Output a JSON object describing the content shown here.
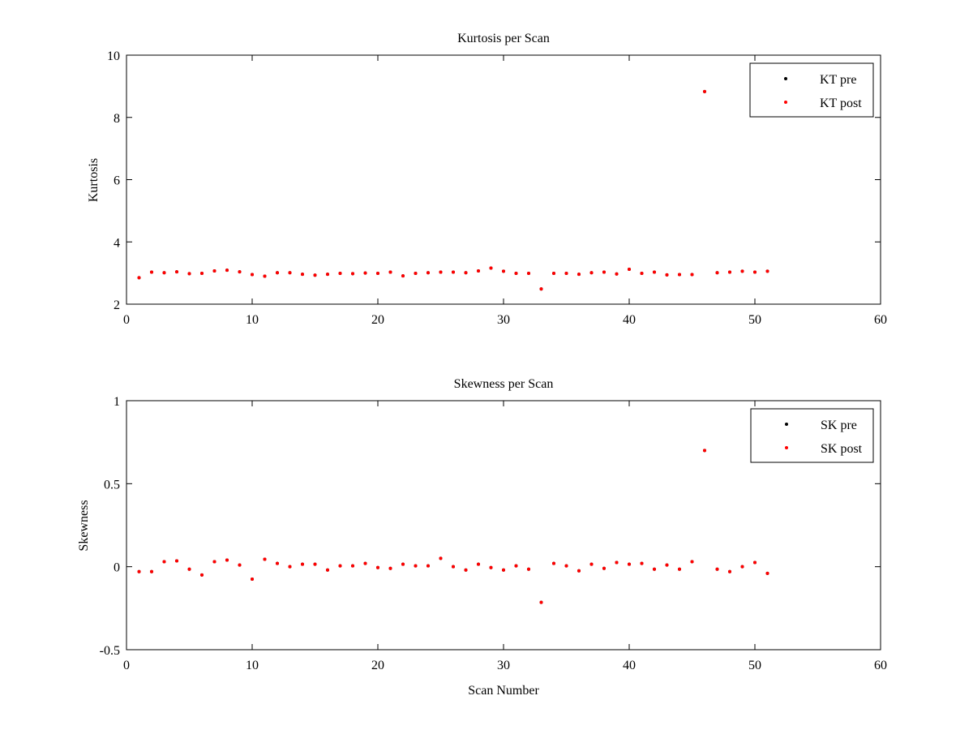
{
  "chart_data": [
    {
      "type": "scatter",
      "title": "Kurtosis per Scan",
      "xlabel": "",
      "ylabel": "Kurtosis",
      "xlim": [
        0,
        60
      ],
      "ylim": [
        2,
        10
      ],
      "xticks": [
        0,
        10,
        20,
        30,
        40,
        50,
        60
      ],
      "yticks": [
        2,
        4,
        6,
        8,
        10
      ],
      "xtick_labels": [
        "0",
        "10",
        "20",
        "30",
        "40",
        "50",
        "60"
      ],
      "ytick_labels": [
        "2",
        "4",
        "6",
        "8",
        "10"
      ],
      "grid": false,
      "legend_position": "top-right",
      "series": [
        {
          "name": "KT pre",
          "color": "#000000",
          "x": [
            1,
            2,
            3,
            4,
            5,
            6,
            7,
            8,
            9,
            10,
            11,
            12,
            13,
            14,
            15,
            16,
            17,
            18,
            19,
            20,
            21,
            22,
            23,
            24,
            25,
            26,
            27,
            28,
            29,
            30,
            31,
            32,
            33,
            34,
            35,
            36,
            37,
            38,
            39,
            40,
            41,
            42,
            43,
            44,
            45,
            46,
            47,
            48,
            49,
            50,
            51
          ],
          "y": [
            2.85,
            3.03,
            3.01,
            3.04,
            2.98,
            2.99,
            3.07,
            3.09,
            3.04,
            2.95,
            2.9,
            3.01,
            3.01,
            2.96,
            2.93,
            2.96,
            2.99,
            2.98,
            3.0,
            2.99,
            3.03,
            2.91,
            2.99,
            3.01,
            3.03,
            3.03,
            3.01,
            3.07,
            3.16,
            3.06,
            2.99,
            2.99,
            2.49,
            2.99,
            2.99,
            2.96,
            3.01,
            3.03,
            2.97,
            3.12,
            2.99,
            3.03,
            2.94,
            2.95,
            2.95,
            8.83,
            3.01,
            3.03,
            3.06,
            3.03,
            3.06
          ]
        },
        {
          "name": "KT post",
          "color": "#ff0000",
          "x": [
            1,
            2,
            3,
            4,
            5,
            6,
            7,
            8,
            9,
            10,
            11,
            12,
            13,
            14,
            15,
            16,
            17,
            18,
            19,
            20,
            21,
            22,
            23,
            24,
            25,
            26,
            27,
            28,
            29,
            30,
            31,
            32,
            33,
            34,
            35,
            36,
            37,
            38,
            39,
            40,
            41,
            42,
            43,
            44,
            45,
            46,
            47,
            48,
            49,
            50,
            51
          ],
          "y": [
            2.85,
            3.03,
            3.01,
            3.04,
            2.98,
            2.99,
            3.07,
            3.09,
            3.04,
            2.95,
            2.9,
            3.01,
            3.01,
            2.96,
            2.93,
            2.96,
            2.99,
            2.98,
            3.0,
            2.99,
            3.03,
            2.91,
            2.99,
            3.01,
            3.03,
            3.03,
            3.01,
            3.07,
            3.16,
            3.06,
            2.99,
            2.99,
            2.49,
            2.99,
            2.99,
            2.96,
            3.01,
            3.03,
            2.97,
            3.12,
            2.99,
            3.03,
            2.94,
            2.95,
            2.95,
            8.83,
            3.01,
            3.03,
            3.06,
            3.03,
            3.06
          ]
        }
      ]
    },
    {
      "type": "scatter",
      "title": "Skewness per Scan",
      "xlabel": "Scan Number",
      "ylabel": "Skewness",
      "xlim": [
        0,
        60
      ],
      "ylim": [
        -0.5,
        1
      ],
      "xticks": [
        0,
        10,
        20,
        30,
        40,
        50,
        60
      ],
      "yticks": [
        -0.5,
        0,
        0.5,
        1
      ],
      "xtick_labels": [
        "0",
        "10",
        "20",
        "30",
        "40",
        "50",
        "60"
      ],
      "ytick_labels": [
        "-0.5",
        "0",
        "0.5",
        "1"
      ],
      "grid": false,
      "legend_position": "top-right",
      "series": [
        {
          "name": "SK pre",
          "color": "#000000",
          "x": [
            1,
            2,
            3,
            4,
            5,
            6,
            7,
            8,
            9,
            10,
            11,
            12,
            13,
            14,
            15,
            16,
            17,
            18,
            19,
            20,
            21,
            22,
            23,
            24,
            25,
            26,
            27,
            28,
            29,
            30,
            31,
            32,
            33,
            34,
            35,
            36,
            37,
            38,
            39,
            40,
            41,
            42,
            43,
            44,
            45,
            46,
            47,
            48,
            49,
            50,
            51
          ],
          "y": [
            -0.03,
            -0.03,
            0.03,
            0.035,
            -0.015,
            -0.05,
            0.03,
            0.04,
            0.01,
            -0.075,
            0.045,
            0.02,
            0.0,
            0.015,
            0.015,
            -0.02,
            0.005,
            0.005,
            0.02,
            -0.005,
            -0.01,
            0.015,
            0.005,
            0.005,
            0.05,
            0.0,
            -0.02,
            0.015,
            -0.005,
            -0.02,
            0.005,
            -0.015,
            -0.215,
            0.02,
            0.005,
            -0.025,
            0.015,
            -0.01,
            0.025,
            0.015,
            0.02,
            -0.015,
            0.01,
            -0.015,
            0.03,
            0.7,
            -0.015,
            -0.03,
            0.0,
            0.025,
            -0.04
          ]
        },
        {
          "name": "SK post",
          "color": "#ff0000",
          "x": [
            1,
            2,
            3,
            4,
            5,
            6,
            7,
            8,
            9,
            10,
            11,
            12,
            13,
            14,
            15,
            16,
            17,
            18,
            19,
            20,
            21,
            22,
            23,
            24,
            25,
            26,
            27,
            28,
            29,
            30,
            31,
            32,
            33,
            34,
            35,
            36,
            37,
            38,
            39,
            40,
            41,
            42,
            43,
            44,
            45,
            46,
            47,
            48,
            49,
            50,
            51
          ],
          "y": [
            -0.03,
            -0.03,
            0.03,
            0.035,
            -0.015,
            -0.05,
            0.03,
            0.04,
            0.01,
            -0.075,
            0.045,
            0.02,
            0.0,
            0.015,
            0.015,
            -0.02,
            0.005,
            0.005,
            0.02,
            -0.005,
            -0.01,
            0.015,
            0.005,
            0.005,
            0.05,
            0.0,
            -0.02,
            0.015,
            -0.005,
            -0.02,
            0.005,
            -0.015,
            -0.215,
            0.02,
            0.005,
            -0.025,
            0.015,
            -0.01,
            0.025,
            0.015,
            0.02,
            -0.015,
            0.01,
            -0.015,
            0.03,
            0.7,
            -0.015,
            -0.03,
            0.0,
            0.025,
            -0.04
          ]
        }
      ]
    }
  ]
}
